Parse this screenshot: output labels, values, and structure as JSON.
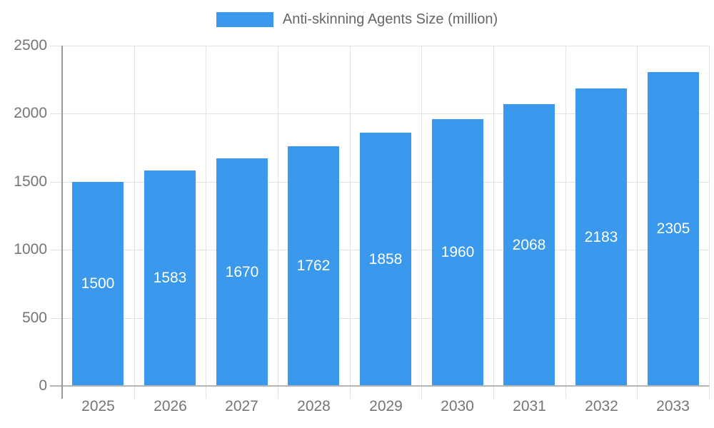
{
  "legend": {
    "label": "Anti-skinning Agents Size (million)"
  },
  "colors": {
    "bar": "#3A99EC",
    "bar_label_text": "#FFFFFF",
    "axis_text": "#757575",
    "legend_text": "#666666",
    "gridline": "#E2E2E2",
    "y_axis_line": "#999999",
    "x_axis_line": "#B3B3B3",
    "background": "#FFFFFF"
  },
  "chart_data": {
    "type": "bar",
    "title": "Anti-skinning Agents Size (million)",
    "categories": [
      "2025",
      "2026",
      "2027",
      "2028",
      "2029",
      "2030",
      "2031",
      "2032",
      "2033"
    ],
    "values": [
      1500,
      1583,
      1670,
      1762,
      1858,
      1960,
      2068,
      2183,
      2305
    ],
    "xlabel": "",
    "ylabel": "",
    "ylim": [
      0,
      2500
    ],
    "yticks": [
      0,
      500,
      1000,
      1500,
      2000,
      2500
    ],
    "grid": true,
    "bar_value_labels_inside": true,
    "legend_position": "top-center"
  }
}
